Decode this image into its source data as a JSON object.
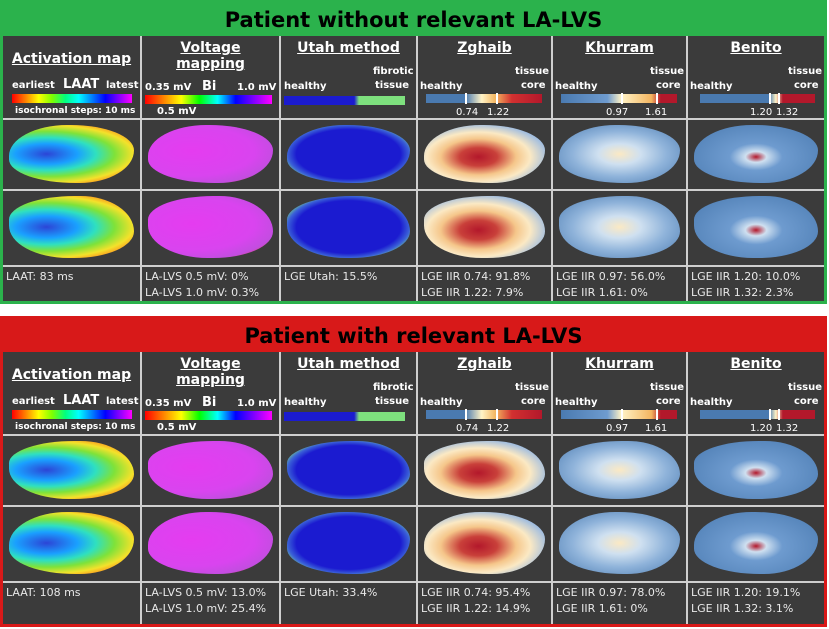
{
  "panels": [
    {
      "title": "Patient without relevant LA-LVS",
      "footers": {
        "activation": [
          "LAAT: 83 ms",
          ""
        ],
        "voltage": [
          "LA-LVS 0.5 mV: 0%",
          "LA-LVS 1.0 mV: 0.3%"
        ],
        "utah": [
          "LGE Utah: 15.5%",
          ""
        ],
        "zghaib": [
          "LGE IIR 0.74: 91.8%",
          "LGE IIR 1.22: 7.9%"
        ],
        "khurram": [
          "LGE IIR 0.97: 56.0%",
          "LGE IIR 1.61: 0%"
        ],
        "benito": [
          "LGE IIR 1.20: 10.0%",
          "LGE IIR 1.32: 2.3%"
        ]
      }
    },
    {
      "title": "Patient with relevant LA-LVS",
      "footers": {
        "activation": [
          "LAAT: 108 ms",
          ""
        ],
        "voltage": [
          "LA-LVS 0.5 mV: 13.0%",
          "LA-LVS 1.0 mV: 25.4%"
        ],
        "utah": [
          "LGE Utah: 33.4%",
          ""
        ],
        "zghaib": [
          "LGE IIR 0.74: 95.4%",
          "LGE IIR 1.22: 14.9%"
        ],
        "khurram": [
          "LGE IIR 0.97: 78.0%",
          "LGE IIR 1.61: 0%"
        ],
        "benito": [
          "LGE IIR 1.20: 19.1%",
          "LGE IIR 1.32: 3.1%"
        ]
      }
    }
  ],
  "headers": {
    "activation": "Activation map",
    "voltage_line1": "Voltage",
    "voltage_line2": "mapping",
    "utah": "Utah method",
    "zghaib": "Zghaib",
    "khurram": "Khurram",
    "benito": "Benito"
  },
  "legends": {
    "earliest": "earliest",
    "laat": "LAAT",
    "latest": "latest",
    "isochronal": "isochronal steps: 10 ms",
    "v_low": "0.35 mV",
    "v_bi": "Bi",
    "v_high": "1.0 mV",
    "v_05": "0.5 mV",
    "healthy": "healthy",
    "fibrotic1": "fibrotic",
    "fibrotic2": "tissue",
    "tissue": "tissue",
    "core": "core",
    "z1": "0.74",
    "z2": "1.22",
    "k1": "0.97",
    "k2": "1.61",
    "b1": "1.20",
    "b2": "1.32"
  },
  "colors": {
    "green": "#2bb24c",
    "red": "#d81919",
    "panel_bg": "#3b3b3b",
    "lge_blue": "#4a7ab0",
    "lge_red": "#b3182b",
    "utah_blue": "#1b1bd0",
    "utah_green": "#7ee07e",
    "voltage_magenta": "#e53cf0"
  }
}
